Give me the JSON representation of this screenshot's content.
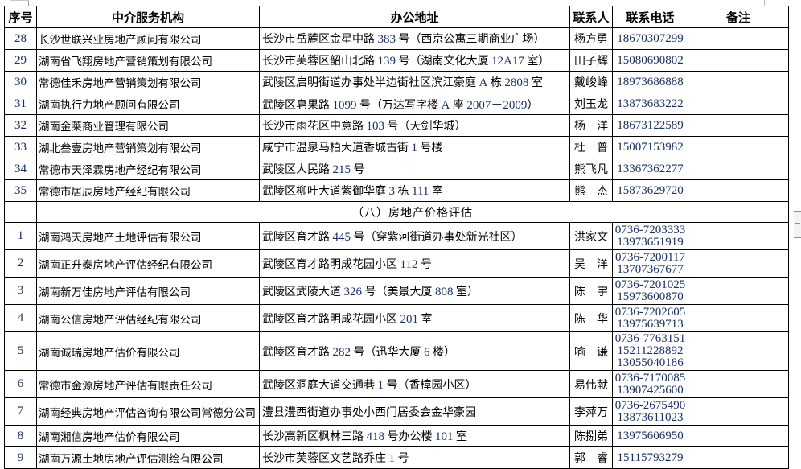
{
  "colors": {
    "number": "#1b3064",
    "border": "#000000",
    "gridline_fragment": "#b3b3b3"
  },
  "table": {
    "columns": [
      {
        "key": "no",
        "label": "序号"
      },
      {
        "key": "org",
        "label": "中介服务机构"
      },
      {
        "key": "address",
        "label": "办公地址"
      },
      {
        "key": "contact",
        "label": "联系人"
      },
      {
        "key": "phone",
        "label": "联系电话"
      },
      {
        "key": "remark",
        "label": "备注"
      }
    ],
    "rows": [
      {
        "type": "data",
        "no": "28",
        "org": "长沙世联兴业房地产顾问有限公司",
        "address": "长沙市岳麓区金星中路 383 号（西京公寓三期商业广场）",
        "contact": "杨方勇",
        "phones": [
          "18670307299"
        ],
        "remark": ""
      },
      {
        "type": "data",
        "no": "29",
        "org": "湖南省飞翔房地产营销策划有限公司",
        "address": "长沙市芙蓉区韶山北路 139 号（湖南文化大厦 12A17 室）",
        "contact": "田子辉",
        "phones": [
          "15080690802"
        ],
        "remark": ""
      },
      {
        "type": "data",
        "no": "30",
        "org": "常德佳禾房地产营销策划有限公司",
        "address": "武陵区启明街道办事处半边街社区滨江豪庭 A 栋 2808 室",
        "contact": "戴峻峰",
        "phones": [
          "18973686888"
        ],
        "remark": ""
      },
      {
        "type": "data",
        "no": "31",
        "org": "湖南执行力地产顾问有限公司",
        "address": "武陵区皂果路 1099 号（万达写字楼 A 座 2007－2009）",
        "contact": "刘玉龙",
        "phones": [
          "13873683222"
        ],
        "remark": ""
      },
      {
        "type": "data",
        "no": "32",
        "org": "湖南金莱商业管理有限公司",
        "address": "长沙市雨花区中意路 103 号（天剑华城）",
        "contact": "杨　洋",
        "phones": [
          "18673122589"
        ],
        "remark": ""
      },
      {
        "type": "data",
        "no": "33",
        "org": "湖北叁壹房地产营销策划有限公司",
        "address": "咸宁市温泉马柏大道香城古街 1 号楼",
        "contact": "杜　普",
        "phones": [
          "15007153982"
        ],
        "remark": ""
      },
      {
        "type": "data",
        "no": "34",
        "org": "常德市天泽霖房地产经纪有限公司",
        "address": "武陵区人民路 215 号",
        "contact": "熊飞凡",
        "phones": [
          "13367362277"
        ],
        "remark": ""
      },
      {
        "type": "data",
        "no": "35",
        "org": "常德市居辰房地产经纪有限公司",
        "address": "武陵区柳叶大道紫御华庭 3 栋 111 室",
        "contact": "熊　杰",
        "phones": [
          "15873629720"
        ],
        "remark": ""
      },
      {
        "type": "section",
        "title": "（八）房地产价格评估"
      },
      {
        "type": "data",
        "no": "1",
        "org": "湖南鸿天房地产土地评估有限公司",
        "address": "武陵区育才路 445 号（穿紫河街道办事处新光社区）",
        "contact": "洪家文",
        "phones": [
          "0736-7203333",
          "13973651919"
        ],
        "remark": ""
      },
      {
        "type": "data",
        "no": "2",
        "org": "湖南正升泰房地产评估经纪有限公司",
        "address": "武陵区育才路明成花园小区 112 号",
        "contact": "吴　洋",
        "phones": [
          "0736-7200117",
          "13707367677"
        ],
        "remark": ""
      },
      {
        "type": "data",
        "no": "3",
        "org": "湖南新万佳房地产评估有限公司",
        "address": "武陵区武陵大道 326 号（美景大厦 808 室）",
        "contact": "陈　宇",
        "phones": [
          "0736-7201025",
          "15973600870"
        ],
        "remark": ""
      },
      {
        "type": "data",
        "no": "4",
        "org": "湖南公信房地产评估经纪有限公司",
        "address": "武陵区育才路明成花园小区 201 室",
        "contact": "陈　华",
        "phones": [
          "0736-7202605",
          "13975639713"
        ],
        "remark": ""
      },
      {
        "type": "data",
        "no": "5",
        "org": "湖南诚瑞房地产估价有限公司",
        "address": "武陵区育才路 282 号（迅华大厦 6 楼）",
        "contact": "喻　谦",
        "phones": [
          "0736-7763151",
          "15211228892",
          "13055040186"
        ],
        "remark": ""
      },
      {
        "type": "data",
        "no": "6",
        "org": "常德市金源房地产评估有限责任公司",
        "address": "武陵区洞庭大道交通巷 1 号（香樟园小区）",
        "contact": "易伟献",
        "phones": [
          "0736-7170085",
          "13907425600"
        ],
        "remark": ""
      },
      {
        "type": "data",
        "no": "7",
        "org": "湖南经典房地产评估咨询有限公司常德分公司",
        "address": "澧县澧西街道办事处小西门居委会金华豪园",
        "contact": "李萍万",
        "phones": [
          "0736-2675490",
          "13873611023"
        ],
        "remark": ""
      },
      {
        "type": "data",
        "no": "8",
        "org": "湖南湘信房地产估价有限公司",
        "address": "长沙高新区枫林三路 418 号办公楼 101 室",
        "contact": "陈捌弟",
        "phones": [
          "13975606950"
        ],
        "remark": ""
      },
      {
        "type": "data",
        "no": "9",
        "org": "湖南万源土地房地产评估测绘有限公司",
        "address": "长沙市芙蓉区文艺路乔庄 1 号",
        "contact": "郭　睿",
        "phones": [
          "15115793279"
        ],
        "remark": ""
      }
    ]
  }
}
